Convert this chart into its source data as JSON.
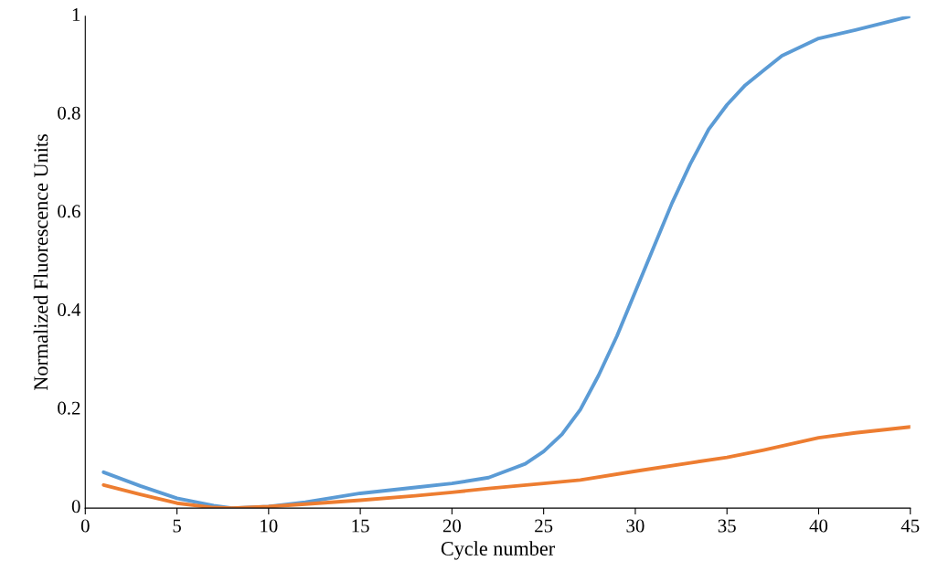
{
  "chart_data": {
    "type": "line",
    "xlabel": "Cycle number",
    "ylabel": "Normalized Fluorescence Units",
    "xlim": [
      0,
      45
    ],
    "ylim": [
      0,
      1
    ],
    "xticks": [
      0,
      5,
      10,
      15,
      20,
      25,
      30,
      35,
      40,
      45
    ],
    "yticks": [
      0,
      0.2,
      0.4,
      0.6,
      0.8,
      1
    ],
    "grid": false,
    "legend": false,
    "marker": "none",
    "line_style": "solid",
    "series": [
      {
        "color": "#5b9bd5",
        "x": [
          1,
          3,
          5,
          7,
          8,
          10,
          12,
          15,
          18,
          20,
          22,
          24,
          25,
          26,
          27,
          28,
          29,
          30,
          31,
          32,
          33,
          34,
          35,
          36,
          37,
          38,
          40,
          42,
          45
        ],
        "values": [
          0.073,
          0.045,
          0.02,
          0.005,
          0.0,
          0.003,
          0.012,
          0.03,
          0.042,
          0.05,
          0.062,
          0.09,
          0.115,
          0.15,
          0.2,
          0.27,
          0.35,
          0.44,
          0.53,
          0.62,
          0.7,
          0.77,
          0.82,
          0.86,
          0.89,
          0.92,
          0.955,
          0.972,
          1.0
        ]
      },
      {
        "color": "#ed7d31",
        "x": [
          1,
          3,
          5,
          7,
          8,
          10,
          12,
          15,
          18,
          20,
          22,
          25,
          27,
          30,
          33,
          35,
          37,
          40,
          42,
          45
        ],
        "values": [
          0.047,
          0.028,
          0.01,
          0.001,
          0.0,
          0.003,
          0.008,
          0.016,
          0.025,
          0.032,
          0.04,
          0.05,
          0.057,
          0.075,
          0.092,
          0.103,
          0.118,
          0.143,
          0.153,
          0.165
        ]
      }
    ]
  }
}
